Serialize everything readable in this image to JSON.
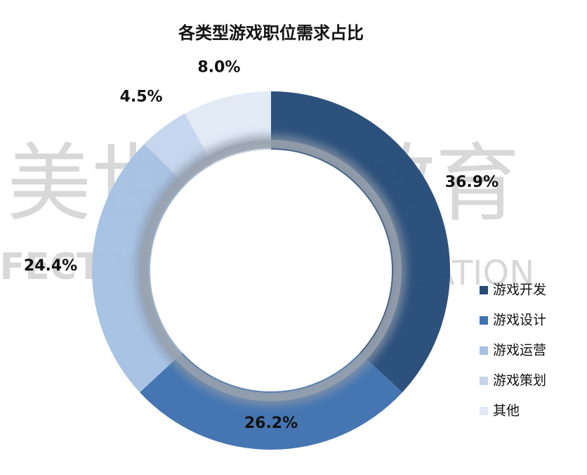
{
  "chart_data": {
    "type": "donut",
    "title": "各类型游戏职位需求占比",
    "categories": [
      "游戏开发",
      "游戏设计",
      "游戏运营",
      "游戏策划",
      "其他"
    ],
    "values": [
      36.9,
      26.2,
      24.4,
      4.5,
      8.0
    ],
    "value_labels": [
      "36.9%",
      "26.2%",
      "24.4%",
      "4.5%",
      "8.0%"
    ],
    "colors": [
      "#264b79",
      "#3f72b0",
      "#a6c1e3",
      "#c4d5ed",
      "#e0e9f5"
    ],
    "legend": "right",
    "watermark": [
      "美世界",
      "教育",
      "FECT WORLD",
      "EDUCATION"
    ]
  }
}
